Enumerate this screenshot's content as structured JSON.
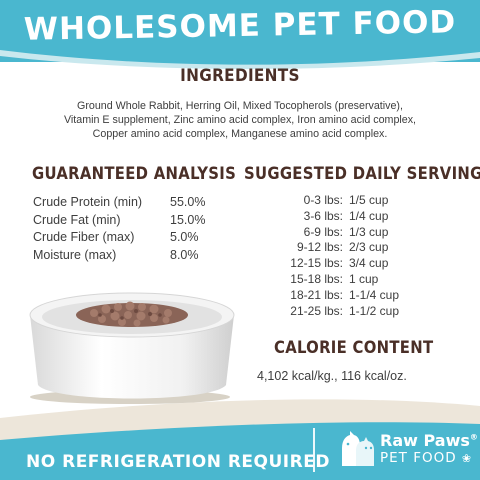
{
  "header": {
    "title": "WHOLESOME PET FOOD"
  },
  "ingredients": {
    "title": "INGREDIENTS",
    "lines": [
      "Ground Whole Rabbit, Herring Oil, Mixed Tocopherols (preservative),",
      "Vitamin E supplement, Zinc amino acid complex, Iron amino acid complex,",
      "Copper amino acid complex, Manganese amino acid complex."
    ]
  },
  "guaranteed_analysis": {
    "title": "GUARANTEED ANALYSIS",
    "rows": [
      {
        "label": "Crude Protein (min)",
        "value": "55.0%"
      },
      {
        "label": "Crude Fat (min)",
        "value": "15.0%"
      },
      {
        "label": "Crude Fiber (max)",
        "value": "5.0%"
      },
      {
        "label": "Moisture (max)",
        "value": "8.0%"
      }
    ]
  },
  "serving": {
    "title": "SUGGESTED DAILY SERVING",
    "rows": [
      {
        "weight": "0-3 lbs:",
        "amount": "1/5 cup"
      },
      {
        "weight": "3-6 lbs:",
        "amount": "1/4 cup"
      },
      {
        "weight": "6-9 lbs:",
        "amount": "1/3 cup"
      },
      {
        "weight": "9-12 lbs:",
        "amount": "2/3 cup"
      },
      {
        "weight": "12-15 lbs:",
        "amount": "3/4 cup"
      },
      {
        "weight": "15-18 lbs:",
        "amount": "1 cup"
      },
      {
        "weight": "18-21 lbs:",
        "amount": "1-1/4 cup"
      },
      {
        "weight": "21-25 lbs:",
        "amount": "1-1/2 cup"
      }
    ]
  },
  "calories": {
    "title": "CALORIE CONTENT",
    "text": "4,102 kcal/kg., 116 kcal/oz."
  },
  "footer": {
    "notice": "NO REFRIGERATION REQUIRED",
    "brand_line1": "Raw Paws",
    "brand_mark": "®",
    "brand_line2": "PET FOOD"
  },
  "colors": {
    "teal": "#4ab7cf",
    "brown": "#4a2f27",
    "cream": "#ede6da",
    "text": "#3e3e3e"
  },
  "icons": {
    "logo": "dog-cat-paw-icon",
    "bowl": "food-bowl-image"
  }
}
